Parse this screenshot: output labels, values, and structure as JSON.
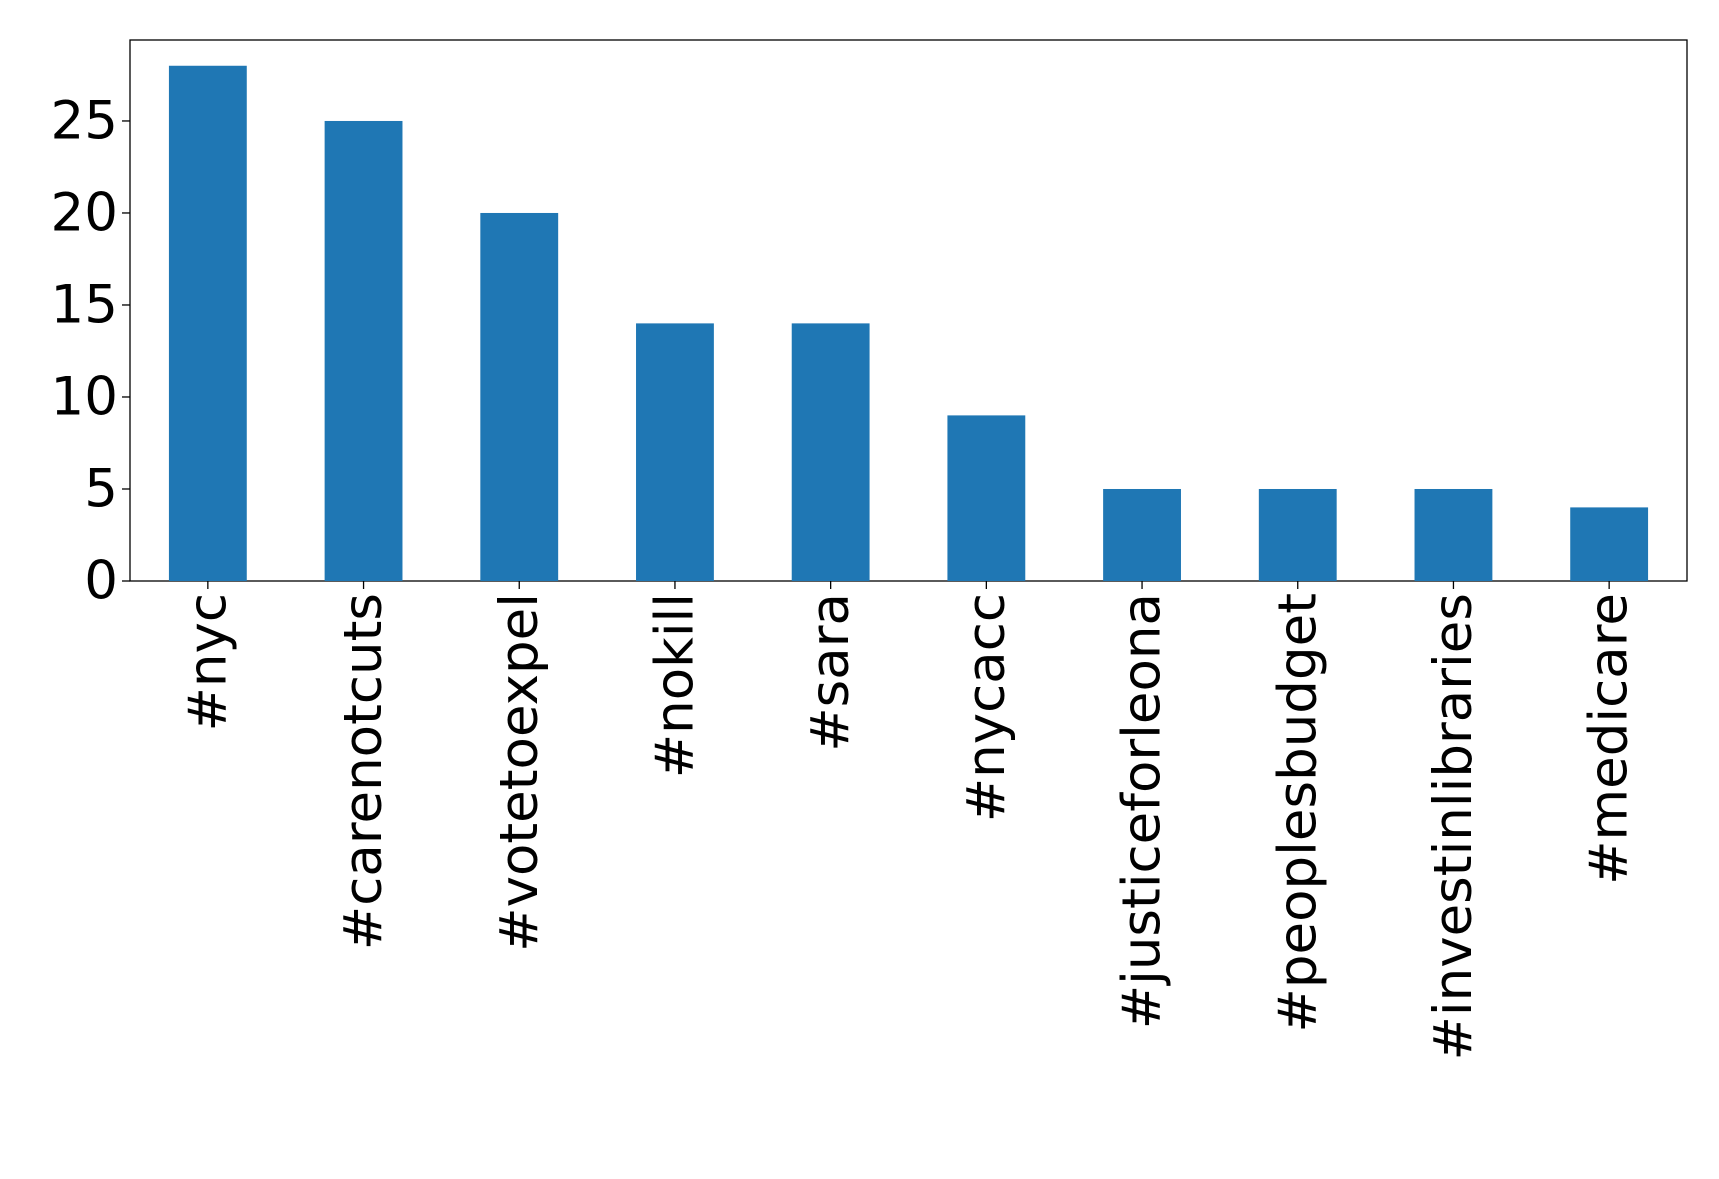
{
  "chart_data": {
    "type": "bar",
    "categories": [
      "#nyc",
      "#carenotcuts",
      "#votetoexpel",
      "#nokill",
      "#sara",
      "#nycacc",
      "#justiceforleona",
      "#peoplesbudget",
      "#investinlibraries",
      "#medicare"
    ],
    "values": [
      28,
      25,
      20,
      14,
      14,
      9,
      5,
      5,
      5,
      4
    ],
    "color": "#1f77b4",
    "ylim": [
      0,
      29.4
    ],
    "yticks": [
      0,
      5,
      10,
      15,
      20,
      25
    ],
    "grid": false
  }
}
